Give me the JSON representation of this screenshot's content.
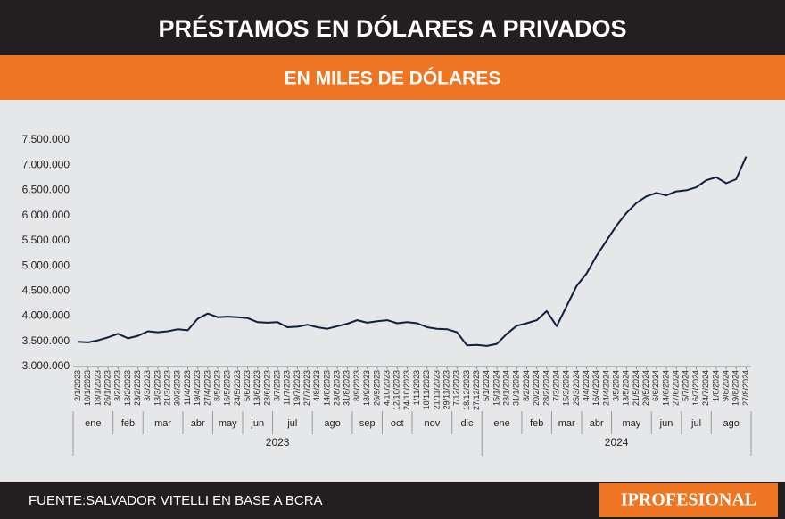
{
  "chart_data": {
    "type": "line",
    "title": "PRÉSTAMOS EN DÓLARES A PRIVADOS",
    "subtitle": "EN MILES DE DÓLARES",
    "categories": [
      "2/1/2023",
      "10/1/2023",
      "18/1/2023",
      "26/1/2023",
      "3/2/2023",
      "13/2/2023",
      "23/2/2023",
      "3/3/2023",
      "13/3/2023",
      "21/3/2023",
      "30/3/2023",
      "11/4/2023",
      "19/4/2023",
      "27/4/2023",
      "8/5/2023",
      "16/5/2023",
      "24/5/2023",
      "5/6/2023",
      "13/6/2023",
      "23/6/2023",
      "3/7/2023",
      "11/7/2023",
      "19/7/2023",
      "27/7/2023",
      "4/8/2023",
      "14/8/2023",
      "23/8/2023",
      "31/8/2023",
      "8/9/2023",
      "18/9/2023",
      "26/9/2023",
      "4/10/2023",
      "12/10/2023",
      "24/10/2023",
      "1/11/2023",
      "10/11/2023",
      "21/11/2023",
      "29/11/2023",
      "7/12/2023",
      "18/12/2023",
      "27/12/2023",
      "5/1/2024",
      "15/1/2024",
      "23/1/2024",
      "31/1/2024",
      "8/2/2024",
      "20/2/2024",
      "28/2/2024",
      "7/3/2024",
      "15/3/2024",
      "25/3/2024",
      "4/4/2024",
      "16/4/2024",
      "24/4/2024",
      "3/5/2024",
      "13/5/2024",
      "21/5/2024",
      "29/5/2024",
      "6/6/2024",
      "14/6/2024",
      "27/6/2024",
      "5/7/2024",
      "16/7/2024",
      "24/7/2024",
      "1/8/2024",
      "9/8/2024",
      "19/8/2024",
      "27/8/2024"
    ],
    "values": [
      3490000,
      3480000,
      3520000,
      3580000,
      3650000,
      3560000,
      3610000,
      3700000,
      3680000,
      3700000,
      3740000,
      3720000,
      3950000,
      4050000,
      3980000,
      3990000,
      3980000,
      3960000,
      3880000,
      3870000,
      3880000,
      3780000,
      3790000,
      3830000,
      3780000,
      3750000,
      3800000,
      3850000,
      3920000,
      3870000,
      3900000,
      3920000,
      3860000,
      3880000,
      3860000,
      3780000,
      3750000,
      3740000,
      3680000,
      3420000,
      3430000,
      3410000,
      3450000,
      3650000,
      3810000,
      3860000,
      3920000,
      4100000,
      3800000,
      4200000,
      4600000,
      4850000,
      5200000,
      5500000,
      5800000,
      6050000,
      6250000,
      6380000,
      6450000,
      6400000,
      6480000,
      6500000,
      6560000,
      6700000,
      6760000,
      6640000,
      6720000,
      7170000
    ],
    "color": "#0f1f3d",
    "x_groups": [
      {
        "label": "2023",
        "months": [
          "ene",
          "feb",
          "mar",
          "abr",
          "may",
          "jun",
          "jul",
          "ago",
          "sep",
          "oct",
          "nov",
          "dic"
        ]
      },
      {
        "label": "2024",
        "months": [
          "ene",
          "feb",
          "mar",
          "abr",
          "may",
          "jun",
          "jul",
          "ago"
        ]
      }
    ],
    "ylim": [
      3000000,
      7500000
    ],
    "yticks": [
      {
        "value": 3000000,
        "label": "3.000.000"
      },
      {
        "value": 3500000,
        "label": "3.500.000"
      },
      {
        "value": 4000000,
        "label": "4.000.000"
      },
      {
        "value": 4500000,
        "label": "4.500.000"
      },
      {
        "value": 5000000,
        "label": "5.000.000"
      },
      {
        "value": 5500000,
        "label": "5.500.000"
      },
      {
        "value": 6000000,
        "label": "6.000.000"
      },
      {
        "value": 6500000,
        "label": "6.500.000"
      },
      {
        "value": 7000000,
        "label": "7.000.000"
      },
      {
        "value": 7500000,
        "label": "7.500.000"
      }
    ],
    "grid": false
  },
  "footer": {
    "source": "FUENTE:SALVADOR VITELLI EN BASE A BCRA",
    "logo": "IPROFESIONAL"
  }
}
